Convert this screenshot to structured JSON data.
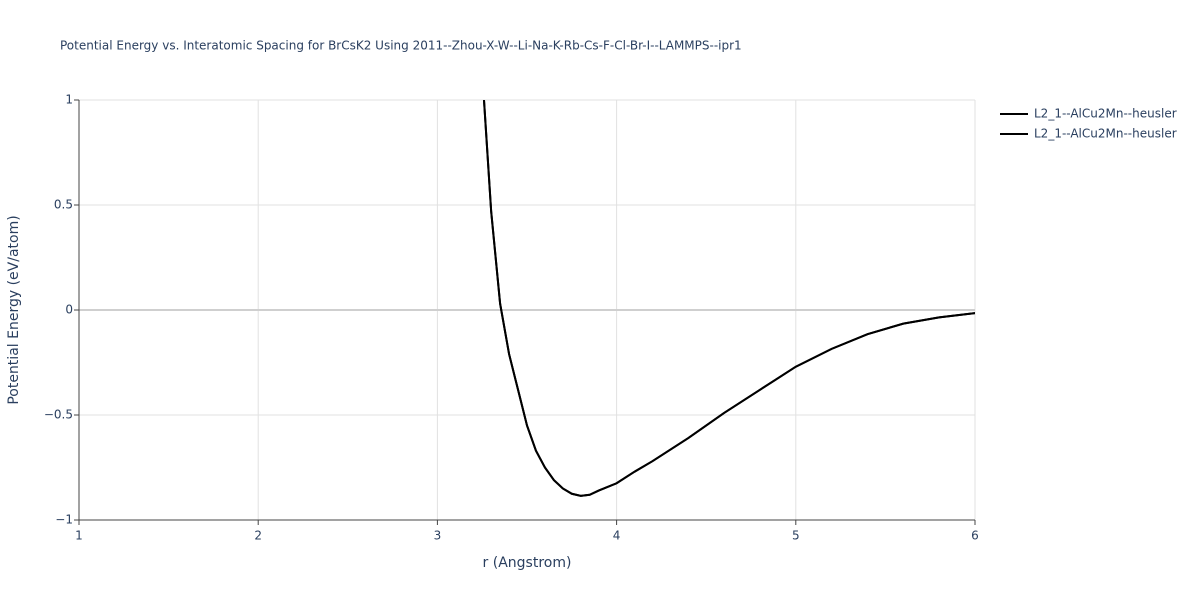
{
  "chart_data": {
    "type": "line",
    "title": "Potential Energy vs. Interatomic Spacing for BrCsK2 Using 2011--Zhou-X-W--Li-Na-K-Rb-Cs-F-Cl-Br-I--LAMMPS--ipr1",
    "x_label": "r (Angstrom)",
    "y_label": "Potential Energy (eV/atom)",
    "xlim": [
      1,
      6
    ],
    "ylim": [
      -1,
      1
    ],
    "xticks": [
      1,
      2,
      3,
      4,
      5,
      6
    ],
    "yticks": [
      {
        "value": -1,
        "label": "−1"
      },
      {
        "value": -0.5,
        "label": "−0.5"
      },
      0,
      0.5,
      1
    ],
    "grid": true,
    "legend": "top-right",
    "x": [
      3.26,
      3.3,
      3.35,
      3.4,
      3.45,
      3.5,
      3.55,
      3.6,
      3.65,
      3.7,
      3.75,
      3.8,
      3.85,
      3.9,
      4.0,
      4.1,
      4.2,
      4.4,
      4.6,
      4.8,
      5.0,
      5.2,
      5.4,
      5.6,
      5.8,
      6.0
    ],
    "series": [
      {
        "name": "L2_1--AlCu2Mn--heusler",
        "color": "#000000",
        "values": [
          1.0,
          0.47,
          0.03,
          -0.21,
          -0.38,
          -0.55,
          -0.67,
          -0.75,
          -0.81,
          -0.85,
          -0.875,
          -0.885,
          -0.88,
          -0.86,
          -0.825,
          -0.77,
          -0.72,
          -0.61,
          -0.49,
          -0.38,
          -0.27,
          -0.185,
          -0.115,
          -0.065,
          -0.035,
          -0.015
        ]
      },
      {
        "name": "L2_1--AlCu2Mn--heusler",
        "color": "#000000",
        "values": [
          1.0,
          0.47,
          0.03,
          -0.21,
          -0.38,
          -0.55,
          -0.67,
          -0.75,
          -0.81,
          -0.85,
          -0.875,
          -0.885,
          -0.88,
          -0.86,
          -0.825,
          -0.77,
          -0.72,
          -0.61,
          -0.49,
          -0.38,
          -0.27,
          -0.185,
          -0.115,
          -0.065,
          -0.035,
          -0.015
        ]
      }
    ]
  }
}
